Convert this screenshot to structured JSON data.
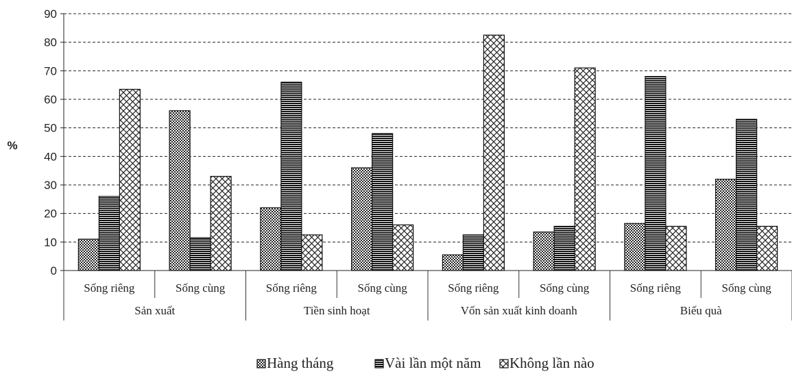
{
  "chart_data": {
    "type": "bar",
    "ylabel": "%",
    "ylim": [
      0,
      90
    ],
    "yticks": [
      0,
      10,
      20,
      30,
      40,
      50,
      60,
      70,
      80,
      90
    ],
    "grid": "horizontal dashed",
    "legend_position": "bottom",
    "groups": [
      "Sản xuất",
      "Tiền sinh hoạt",
      "Vốn sản xuất kinh doanh",
      "Biếu quà"
    ],
    "categories": [
      "Sống riêng",
      "Sống cùng",
      "Sống riêng",
      "Sống cùng",
      "Sống riêng",
      "Sống cùng",
      "Sống riêng",
      "Sống cùng"
    ],
    "series": [
      {
        "name": "Hàng tháng",
        "pattern": "dots",
        "values": [
          11,
          56,
          22,
          36,
          5.5,
          13.5,
          16.5,
          32
        ]
      },
      {
        "name": "Vài lần một năm",
        "pattern": "horizontal-lines",
        "values": [
          26,
          11.5,
          66,
          48,
          12.5,
          15.5,
          68,
          53
        ]
      },
      {
        "name": "Không lần nào",
        "pattern": "crosshatch",
        "values": [
          63.5,
          33,
          12.5,
          16,
          82.5,
          71,
          15.5,
          15.5
        ]
      }
    ]
  }
}
